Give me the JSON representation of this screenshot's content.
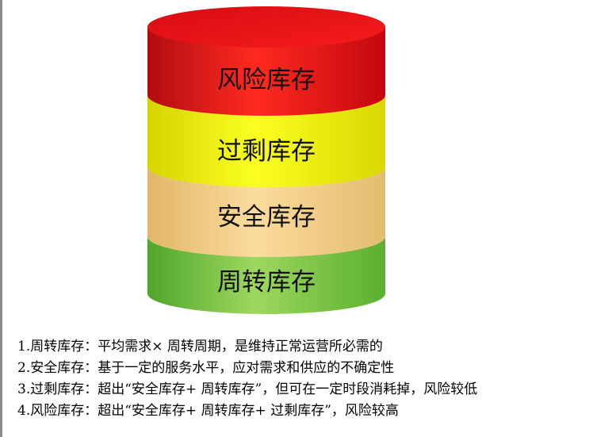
{
  "colors": {
    "risk": "#e8101a",
    "excess": "#f6f60a",
    "safety": "#f3d28e",
    "cycle": "#7fc84a"
  },
  "layers": [
    {
      "label": "风险库存",
      "color_key": "risk"
    },
    {
      "label": "过剩库存",
      "color_key": "excess"
    },
    {
      "label": "安全库存",
      "color_key": "safety"
    },
    {
      "label": "周转库存",
      "color_key": "cycle"
    }
  ],
  "legend": [
    "1.周转库存：平均需求× 周转周期，是维持正常运营所必需的",
    "2.安全库存：基于一定的服务水平，应对需求和供应的不确定性",
    "3.过剩库存：超出“安全库存+ 周转库存”，但可在一定时段消耗掉，风险较低",
    "4.风险库存：超出“安全库存+ 周转库存+ 过剩库存”，风险较高"
  ]
}
